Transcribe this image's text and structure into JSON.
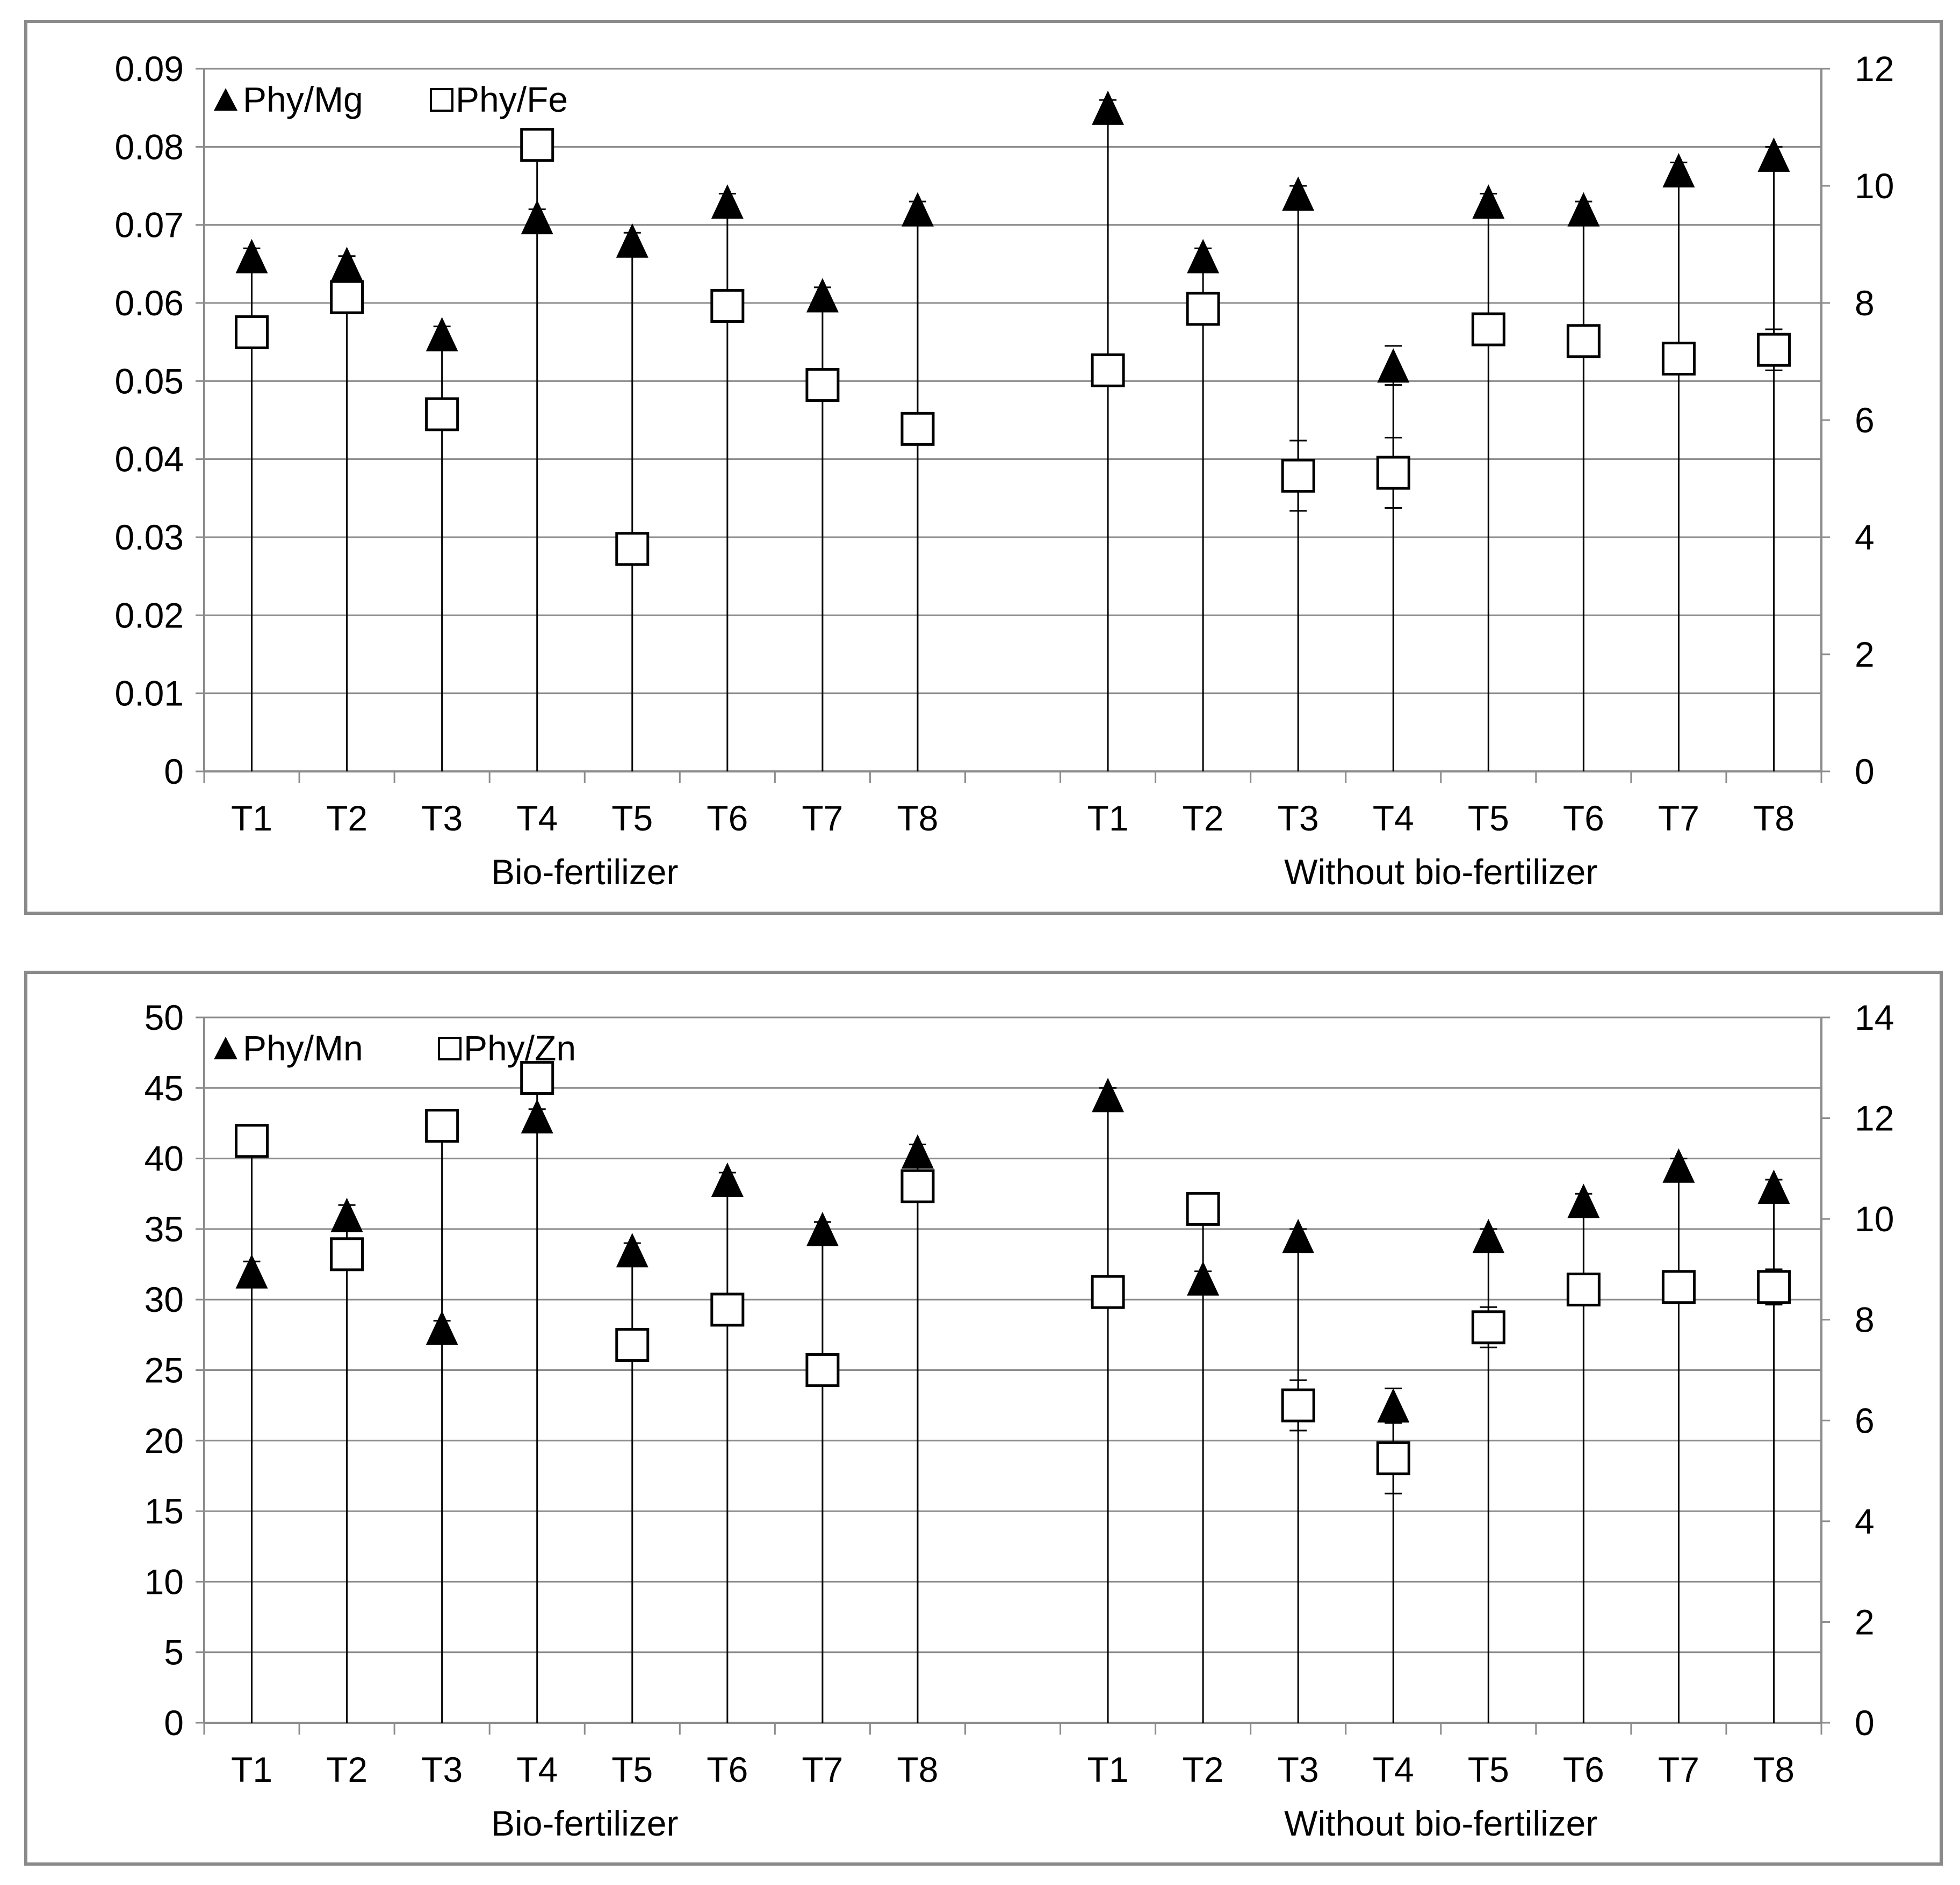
{
  "chart_data": [
    {
      "type": "scatter",
      "legend": {
        "position": "top-left",
        "marker_primary": "▲",
        "marker_secondary": "□"
      },
      "groups": [
        "Bio-fertilizer",
        "Without bio-fertilizer"
      ],
      "treatments": [
        "T1",
        "T2",
        "T3",
        "T4",
        "T5",
        "T6",
        "T7",
        "T8"
      ],
      "left_axis": {
        "ylim": [
          0,
          0.09
        ],
        "ticks": [
          "0",
          "0.01",
          "0.02",
          "0.03",
          "0.04",
          "0.05",
          "0.06",
          "0.07",
          "0.08",
          "0.09"
        ]
      },
      "right_axis": {
        "ylim": [
          0,
          12
        ],
        "ticks": [
          "0",
          "2",
          "4",
          "6",
          "8",
          "10",
          "12"
        ]
      },
      "series": [
        {
          "name": "Phy/Mg",
          "marker": "triangle",
          "axis": "left",
          "values": [
            0.066,
            0.065,
            0.056,
            0.071,
            0.068,
            0.073,
            0.061,
            0.072,
            0.085,
            0.066,
            0.074,
            0.052,
            0.073,
            0.072,
            0.077,
            0.079
          ],
          "errors": [
            0.001,
            0.001,
            0.001,
            0.001,
            0.001,
            0.001,
            0.001,
            0.001,
            0.001,
            0.001,
            0.001,
            0.0025,
            0.001,
            0.001,
            0.001,
            0.001
          ]
        },
        {
          "name": "Phy/Fe",
          "marker": "open-square",
          "axis": "right",
          "values": [
            7.5,
            8.1,
            6.1,
            10.7,
            3.8,
            7.95,
            6.6,
            5.85,
            6.85,
            7.9,
            5.05,
            5.1,
            7.55,
            7.35,
            7.05,
            7.2
          ],
          "errors": [
            0.25,
            0.2,
            0.1,
            0.1,
            0.1,
            0.1,
            0.1,
            0.1,
            0.25,
            0.2,
            0.6,
            0.6,
            0.1,
            0.1,
            0.1,
            0.35
          ]
        }
      ]
    },
    {
      "type": "scatter",
      "legend": {
        "position": "top-left",
        "marker_primary": "▲",
        "marker_secondary": "□"
      },
      "groups": [
        "Bio-fertilizer",
        "Without bio-fertilizer"
      ],
      "treatments": [
        "T1",
        "T2",
        "T3",
        "T4",
        "T5",
        "T6",
        "T7",
        "T8"
      ],
      "left_axis": {
        "ylim": [
          0,
          50
        ],
        "ticks": [
          "0",
          "5",
          "10",
          "15",
          "20",
          "25",
          "30",
          "35",
          "40",
          "45",
          "50"
        ]
      },
      "right_axis": {
        "ylim": [
          0,
          14
        ],
        "ticks": [
          "0",
          "2",
          "4",
          "6",
          "8",
          "10",
          "12",
          "14"
        ]
      },
      "series": [
        {
          "name": "Phy/Mn",
          "marker": "triangle",
          "axis": "left",
          "values": [
            32,
            36,
            28,
            43,
            33.5,
            38.5,
            35,
            40.5,
            44.5,
            31.5,
            34.5,
            22.5,
            34.5,
            37,
            39.5,
            38
          ],
          "errors": [
            0.7,
            0.7,
            0.5,
            0.5,
            0.5,
            0.5,
            0.5,
            0.5,
            0.5,
            0.5,
            0.5,
            1.2,
            0.5,
            0.5,
            0.5,
            0.5
          ]
        },
        {
          "name": "Phy/Zn",
          "marker": "open-square",
          "axis": "right",
          "values": [
            11.55,
            9.3,
            11.85,
            12.8,
            7.5,
            8.2,
            7.0,
            10.65,
            8.55,
            10.2,
            6.3,
            5.25,
            7.85,
            8.6,
            8.65,
            8.65
          ],
          "errors": [
            0.1,
            0.1,
            0.1,
            0.1,
            0.1,
            0.1,
            0.1,
            0.1,
            0.25,
            0.1,
            0.5,
            0.7,
            0.4,
            0.1,
            0.1,
            0.35
          ]
        }
      ]
    }
  ]
}
